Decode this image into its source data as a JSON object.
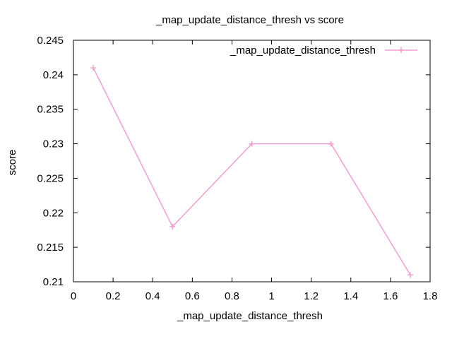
{
  "chart_data": {
    "type": "line",
    "title": "_map_update_distance_thresh vs score",
    "xlabel": "_map_update_distance_thresh",
    "ylabel": "score",
    "xlim": [
      0,
      1.8
    ],
    "ylim": [
      0.21,
      0.245
    ],
    "xticks": [
      "0",
      "0.2",
      "0.4",
      "0.6",
      "0.8",
      "1",
      "1.2",
      "1.4",
      "1.6",
      "1.8"
    ],
    "yticks": [
      "0.21",
      "0.215",
      "0.22",
      "0.225",
      "0.23",
      "0.235",
      "0.24",
      "0.245"
    ],
    "grid": false,
    "legend_position": "top-right",
    "series": [
      {
        "name": "_map_update_distance_thresh",
        "color": "#f0a0d0",
        "marker": "plus",
        "x": [
          0.1,
          0.5,
          0.9,
          1.3,
          1.7
        ],
        "y": [
          0.241,
          0.218,
          0.23,
          0.23,
          0.211
        ]
      }
    ]
  }
}
